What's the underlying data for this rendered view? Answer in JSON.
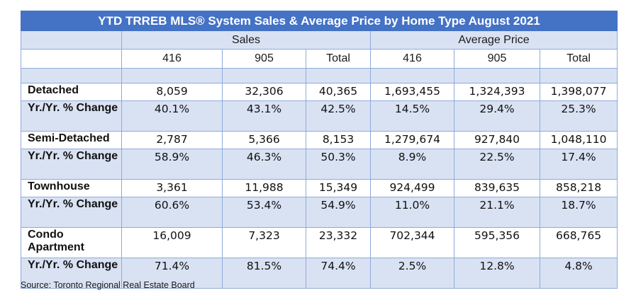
{
  "title": "YTD TRREB MLS® System Sales & Average Price by Home Type August 2021",
  "groups": {
    "sales": "Sales",
    "avg_price": "Average Price"
  },
  "subheaders": [
    "416",
    "905",
    "Total",
    "416",
    "905",
    "Total"
  ],
  "rows": [
    {
      "label": "Detached",
      "values": [
        "8,059",
        "32,306",
        "40,365",
        "1,693,455",
        "1,324,393",
        "1,398,077"
      ]
    },
    {
      "label": "Yr./Yr. % Change",
      "values": [
        "40.1%",
        "43.1%",
        "42.5%",
        "14.5%",
        "29.4%",
        "25.3%"
      ]
    },
    {
      "label": "Semi-Detached",
      "values": [
        "2,787",
        "5,366",
        "8,153",
        "1,279,674",
        "927,840",
        "1,048,110"
      ]
    },
    {
      "label": "Yr./Yr. % Change",
      "values": [
        "58.9%",
        "46.3%",
        "50.3%",
        "8.9%",
        "22.5%",
        "17.4%"
      ]
    },
    {
      "label": "Townhouse",
      "values": [
        "3,361",
        "11,988",
        "15,349",
        "924,499",
        "839,635",
        "858,218"
      ]
    },
    {
      "label": "Yr./Yr. % Change",
      "values": [
        "60.6%",
        "53.4%",
        "54.9%",
        "11.0%",
        "21.1%",
        "18.7%"
      ]
    },
    {
      "label": "Condo Apartment",
      "values": [
        "16,009",
        "7,323",
        "23,332",
        "702,344",
        "595,356",
        "668,765"
      ]
    },
    {
      "label": "Yr./Yr. % Change",
      "values": [
        "71.4%",
        "81.5%",
        "74.4%",
        "2.5%",
        "12.8%",
        "4.8%"
      ]
    }
  ],
  "source": "Source: Toronto Regional Real Estate Board",
  "colors": {
    "header_blue": "#4472c4",
    "band_blue": "#d9e2f3",
    "border": "#8eaadb"
  }
}
